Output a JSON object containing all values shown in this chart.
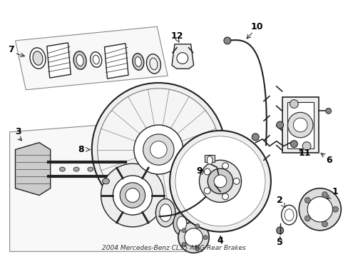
{
  "bg_color": "#ffffff",
  "line_color": "#222222",
  "gray_color": "#666666",
  "light_gray": "#aaaaaa",
  "title": "2004 Mercedes-Benz CL55 AMG Rear Brakes",
  "figsize": [
    4.89,
    3.6
  ],
  "dpi": 100
}
